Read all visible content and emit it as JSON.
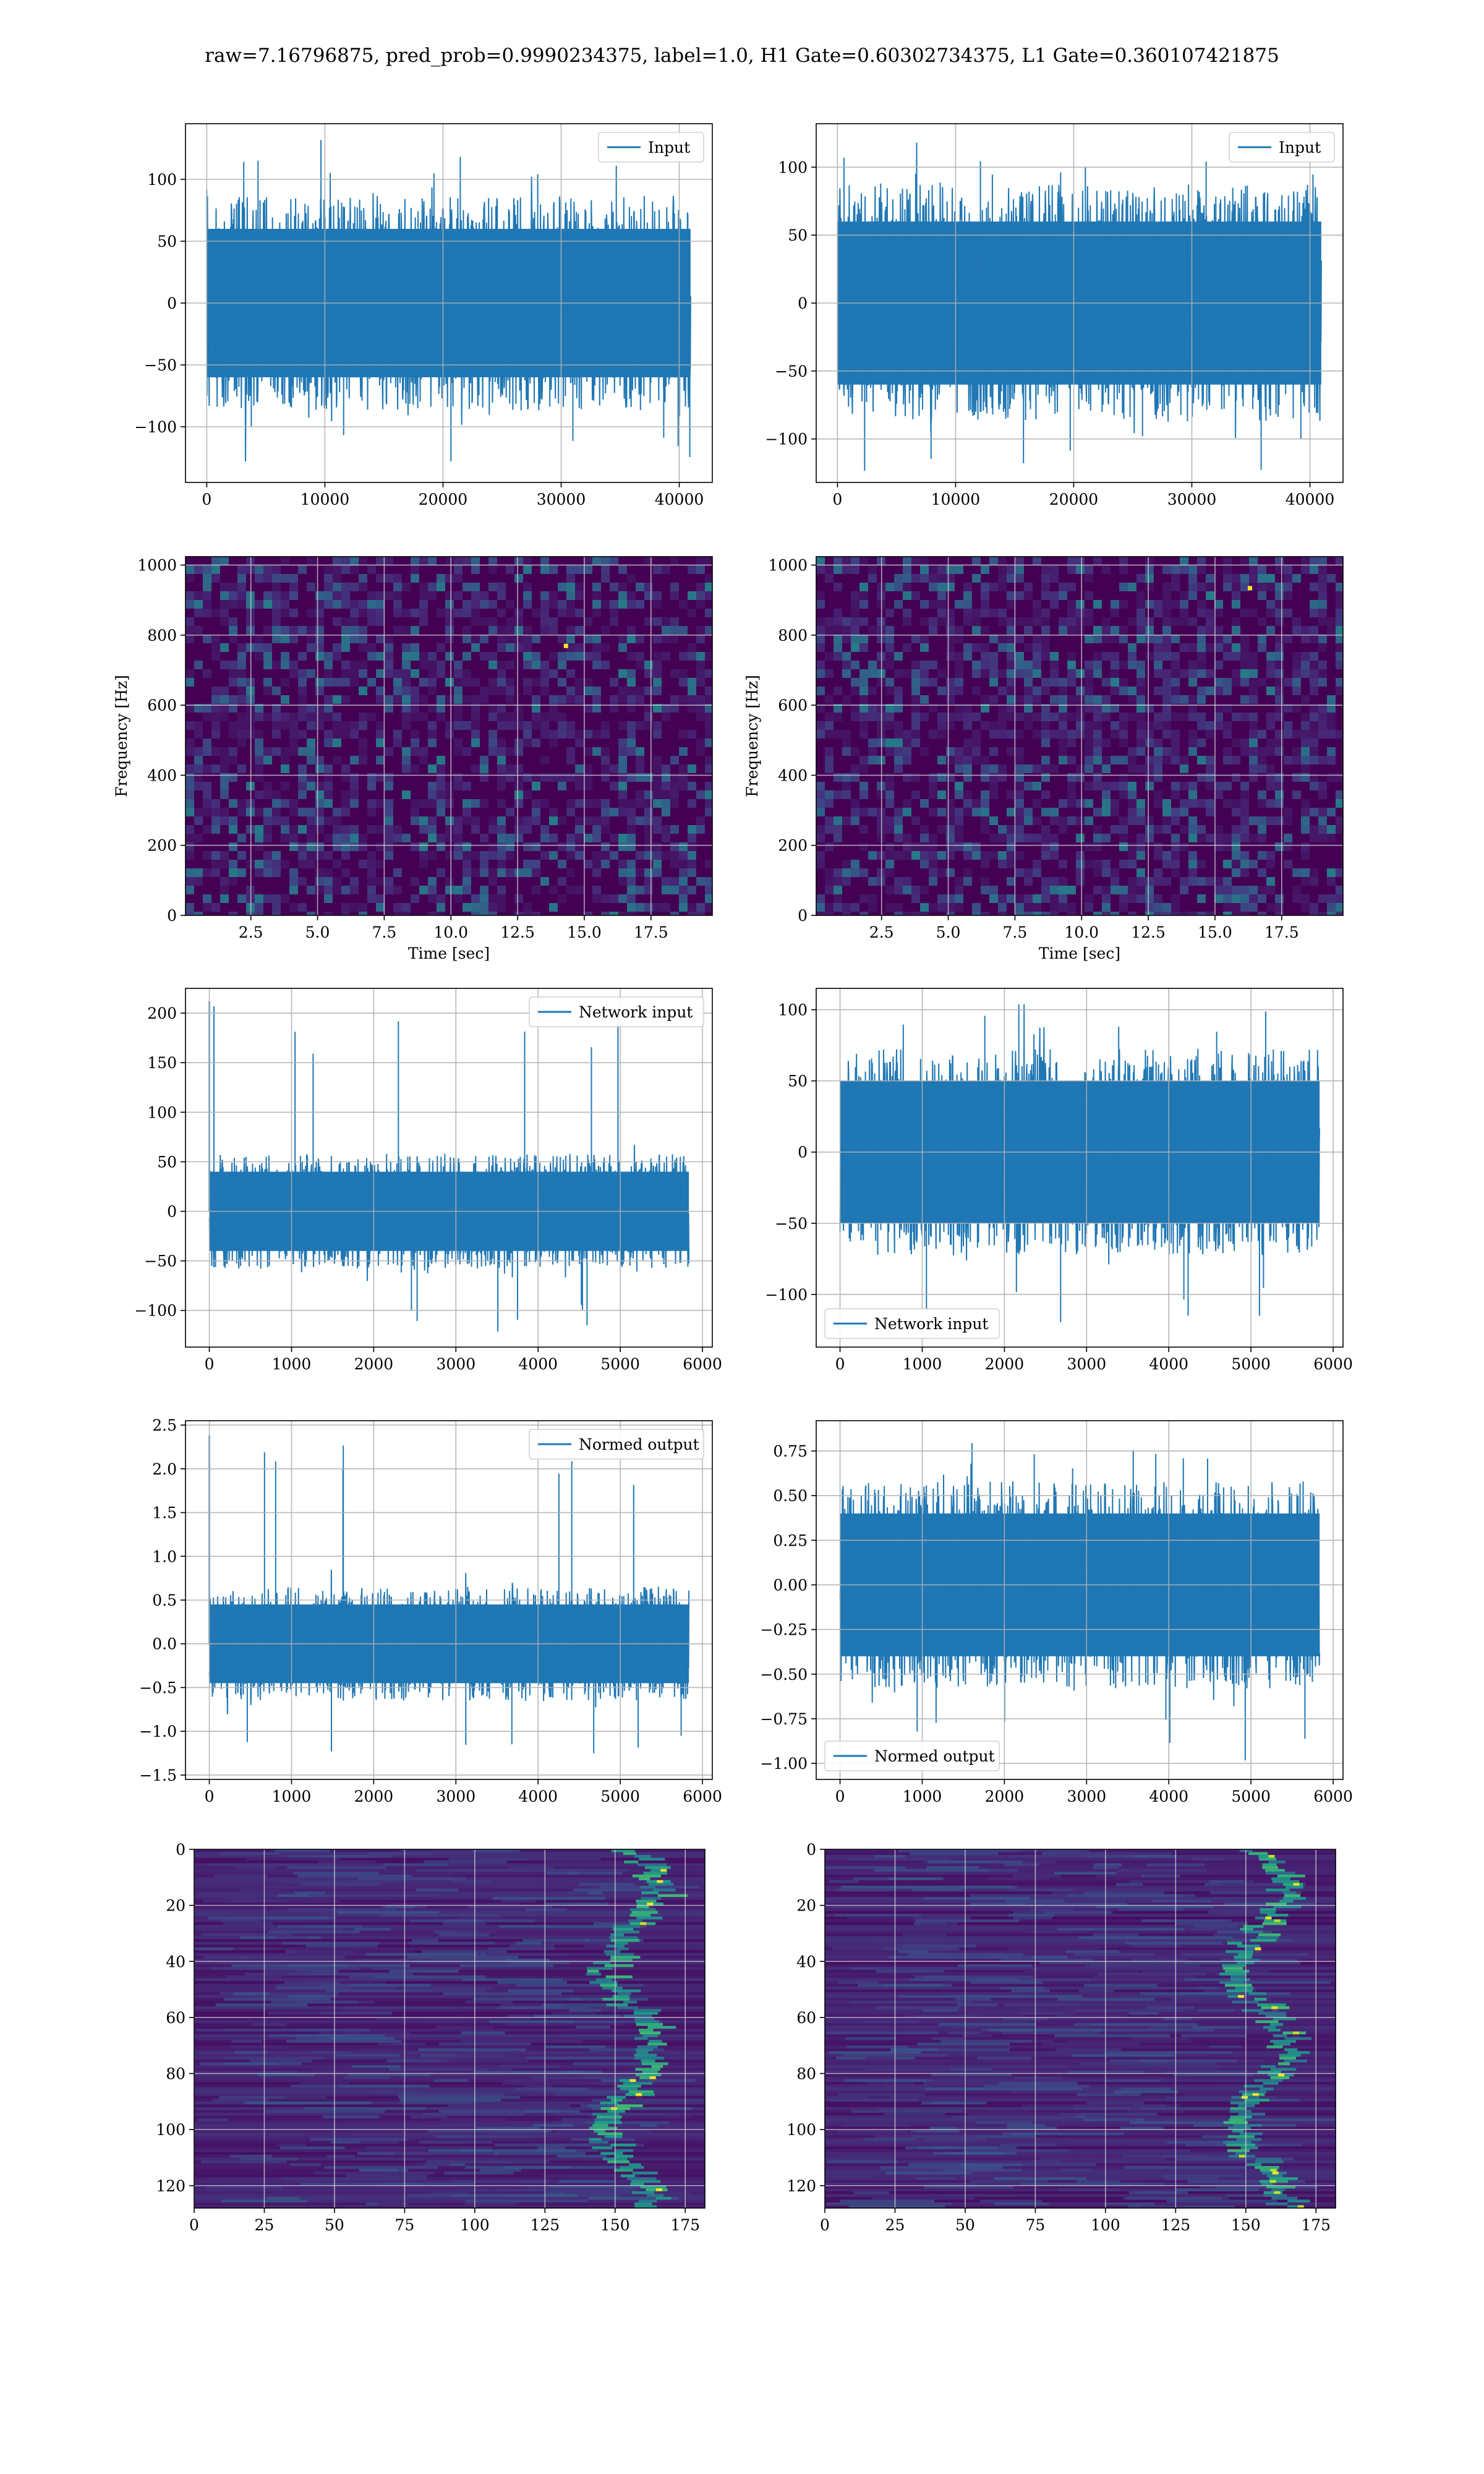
{
  "figure": {
    "title": "raw=7.16796875, pred_prob=0.9990234375, label=1.0, H1 Gate=0.60302734375, L1 Gate=0.360107421875"
  },
  "colors": {
    "series": "#1f77b4",
    "grid": "#b0b0b0",
    "viridis_dark": "#440154"
  },
  "chart_data": [
    {
      "panel": "row1-left",
      "type": "line",
      "legend": "Input",
      "legend_loc": "upper right",
      "xlim": [
        -1800,
        42800
      ],
      "ylim": [
        -145,
        145
      ],
      "xticks": [
        0,
        10000,
        20000,
        30000,
        40000
      ],
      "yticks": [
        -100,
        -50,
        0,
        50,
        100
      ],
      "xlabel": "",
      "ylabel": "",
      "grid": true,
      "series": [
        {
          "name": "Input",
          "n": 40960,
          "center": 0,
          "core_amplitude": 60,
          "max": 133,
          "min": -128
        }
      ]
    },
    {
      "panel": "row1-right",
      "type": "line",
      "legend": "Input",
      "legend_loc": "upper right",
      "xlim": [
        -1800,
        42800
      ],
      "ylim": [
        -132,
        132
      ],
      "xticks": [
        0,
        10000,
        20000,
        30000,
        40000
      ],
      "yticks": [
        -100,
        -50,
        0,
        50,
        100
      ],
      "xlabel": "",
      "ylabel": "",
      "grid": true,
      "series": [
        {
          "name": "Input",
          "n": 40960,
          "center": 0,
          "core_amplitude": 60,
          "max": 118,
          "min": -125
        }
      ]
    },
    {
      "panel": "row2-left",
      "type": "heatmap",
      "colormap": "viridis",
      "xlim": [
        0.05,
        19.8
      ],
      "ylim": [
        0,
        1024
      ],
      "xticks": [
        2.5,
        5.0,
        7.5,
        10.0,
        12.5,
        15.0,
        17.5
      ],
      "yticks": [
        0,
        200,
        400,
        600,
        800,
        1000
      ],
      "xlabel": "Time [sec]",
      "ylabel": "Frequency [Hz]",
      "grid": true,
      "hot_spots": [
        {
          "t": 14.3,
          "f": 770
        }
      ]
    },
    {
      "panel": "row2-right",
      "type": "heatmap",
      "colormap": "viridis",
      "xlim": [
        0.05,
        19.8
      ],
      "ylim": [
        0,
        1024
      ],
      "xticks": [
        2.5,
        5.0,
        7.5,
        10.0,
        12.5,
        15.0,
        17.5
      ],
      "yticks": [
        0,
        200,
        400,
        600,
        800,
        1000
      ],
      "xlabel": "Time [sec]",
      "ylabel": "Frequency [Hz]",
      "grid": true,
      "hot_spots": [
        {
          "t": 16.3,
          "f": 935
        }
      ]
    },
    {
      "panel": "row3-left",
      "type": "line",
      "legend": "Network input",
      "legend_loc": "upper right",
      "xlim": [
        -290,
        6120
      ],
      "ylim": [
        -137,
        225
      ],
      "xticks": [
        0,
        1000,
        2000,
        3000,
        4000,
        5000,
        6000
      ],
      "yticks": [
        -100,
        -50,
        0,
        50,
        100,
        150,
        200
      ],
      "xlabel": "",
      "ylabel": "",
      "grid": true,
      "series": [
        {
          "name": "Network input",
          "n": 5835,
          "center": 0,
          "core_amplitude": 40,
          "max": 212,
          "min": -122
        }
      ]
    },
    {
      "panel": "row3-right",
      "type": "line",
      "legend": "Network input",
      "legend_loc": "lower left",
      "xlim": [
        -290,
        6120
      ],
      "ylim": [
        -137,
        115
      ],
      "xticks": [
        0,
        1000,
        2000,
        3000,
        4000,
        5000,
        6000
      ],
      "yticks": [
        -100,
        -50,
        0,
        50,
        100
      ],
      "xlabel": "",
      "ylabel": "",
      "grid": true,
      "series": [
        {
          "name": "Network input",
          "n": 5835,
          "center": 0,
          "core_amplitude": 50,
          "max": 108,
          "min": -120
        }
      ]
    },
    {
      "panel": "row4-left",
      "type": "line",
      "legend": "Normed output",
      "legend_loc": "upper right",
      "xlim": [
        -290,
        6120
      ],
      "ylim": [
        -1.55,
        2.55
      ],
      "xticks": [
        0,
        1000,
        2000,
        3000,
        4000,
        5000,
        6000
      ],
      "yticks": [
        -1.5,
        -1.0,
        -0.5,
        0.0,
        0.5,
        1.0,
        1.5,
        2.0,
        2.5
      ],
      "xlabel": "",
      "ylabel": "",
      "grid": true,
      "series": [
        {
          "name": "Normed output",
          "n": 5835,
          "center": 0,
          "core_amplitude": 0.45,
          "max": 2.38,
          "min": -1.33
        }
      ]
    },
    {
      "panel": "row4-right",
      "type": "line",
      "legend": "Normed output",
      "legend_loc": "lower left",
      "xlim": [
        -290,
        6120
      ],
      "ylim": [
        -1.09,
        0.92
      ],
      "xticks": [
        0,
        1000,
        2000,
        3000,
        4000,
        5000,
        6000
      ],
      "yticks": [
        -1.0,
        -0.75,
        -0.5,
        -0.25,
        0.0,
        0.25,
        0.5,
        0.75
      ],
      "xlabel": "",
      "ylabel": "",
      "grid": true,
      "series": [
        {
          "name": "Normed output",
          "n": 5835,
          "center": 0,
          "core_amplitude": 0.4,
          "max": 0.85,
          "min": -1.0
        }
      ]
    },
    {
      "panel": "row5-left",
      "type": "heatmap",
      "colormap": "viridis",
      "xlim": [
        0,
        182
      ],
      "ylim": [
        128,
        0
      ],
      "xticks": [
        0,
        25,
        50,
        75,
        100,
        125,
        150,
        175
      ],
      "yticks": [
        0,
        20,
        40,
        60,
        80,
        100,
        120
      ],
      "xlabel": "",
      "ylabel": "",
      "grid": true,
      "bright_band": {
        "x_from": 140,
        "x_to": 182
      }
    },
    {
      "panel": "row5-right",
      "type": "heatmap",
      "colormap": "viridis",
      "xlim": [
        0,
        182
      ],
      "ylim": [
        128,
        0
      ],
      "xticks": [
        0,
        25,
        50,
        75,
        100,
        125,
        150,
        175
      ],
      "yticks": [
        0,
        20,
        40,
        60,
        80,
        100,
        120
      ],
      "xlabel": "",
      "ylabel": "",
      "grid": true,
      "bright_band": {
        "x_from": 140,
        "x_to": 182
      }
    }
  ]
}
